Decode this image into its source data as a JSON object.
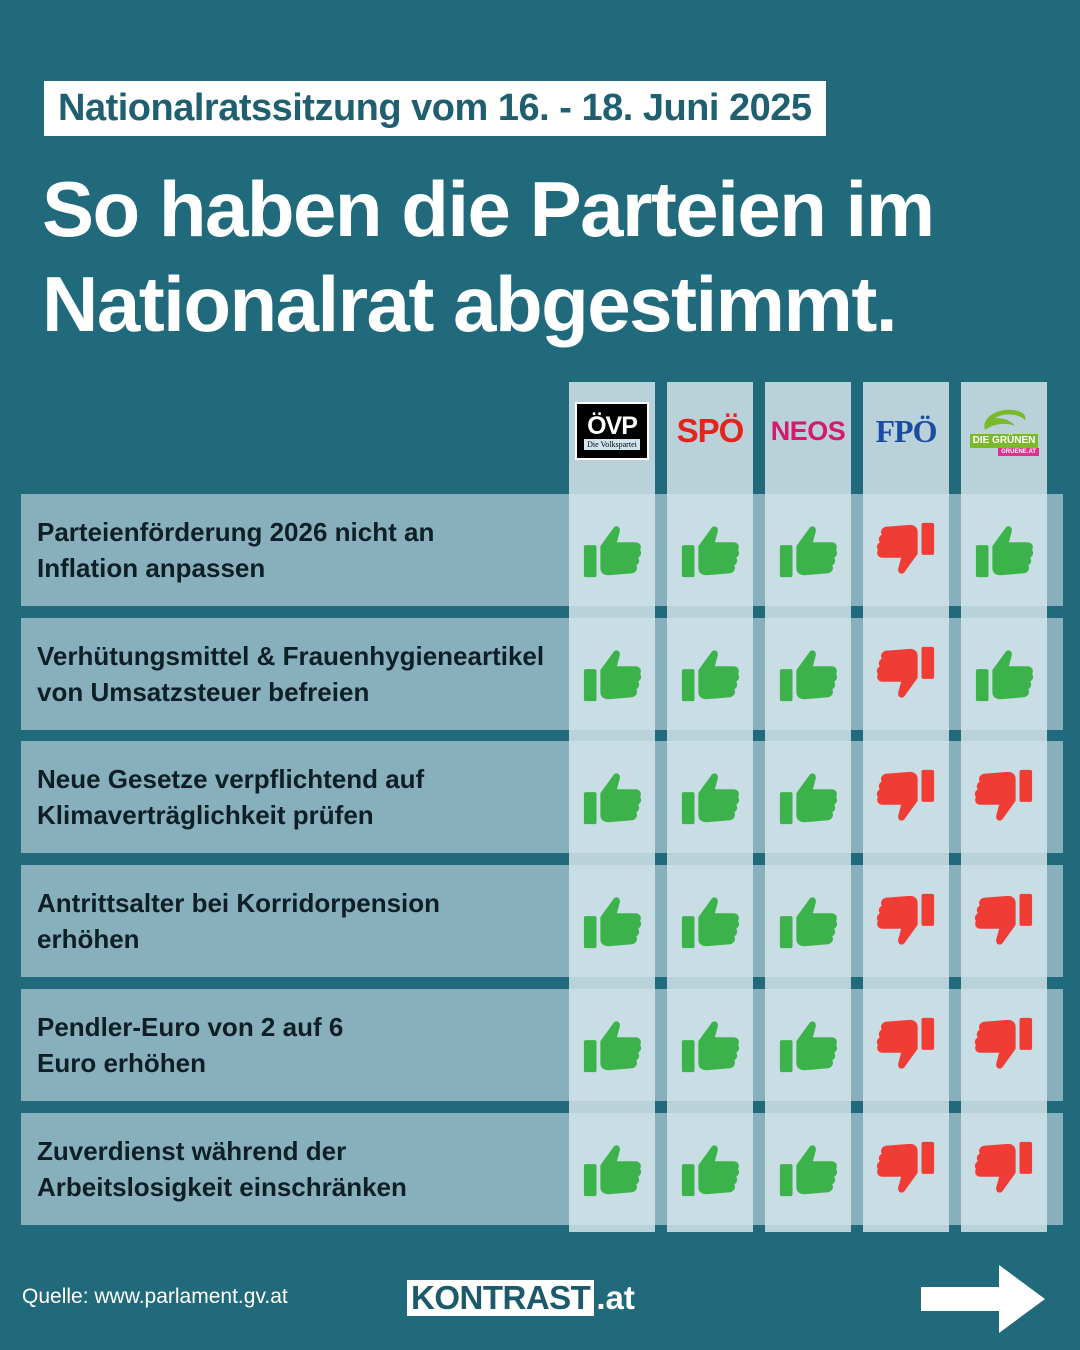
{
  "header": {
    "date_label": "Nationalratssitzung vom 16. - 18. Juni 2025",
    "title": "So haben die Parteien im Nationalrat abgestimmt."
  },
  "parties": [
    {
      "name": "ÖVP",
      "sub": "Die Volkspartei",
      "color": "#000000"
    },
    {
      "name": "SPÖ",
      "color": "#e3251e"
    },
    {
      "name": "NEOS",
      "color": "#d4196f"
    },
    {
      "name": "FPÖ",
      "color": "#1b4ca1"
    },
    {
      "name": "DIE GRÜNEN",
      "sub": "GRUENE.AT",
      "color": "#7ab929"
    }
  ],
  "colors": {
    "yes": "#3cb34a",
    "no": "#ef3d36",
    "background": "#216a7c"
  },
  "votes": [
    {
      "label": "Parteienförderung 2026 nicht an\nInflation anpassen",
      "votes": [
        "yes",
        "yes",
        "yes",
        "no",
        "yes"
      ]
    },
    {
      "label": "Verhütungsmittel & Frauenhygieneartikel\nvon Umsatzsteuer befreien",
      "votes": [
        "yes",
        "yes",
        "yes",
        "no",
        "yes"
      ]
    },
    {
      "label": "Neue Gesetze verpflichtend auf\nKlimaverträglichkeit prüfen",
      "votes": [
        "yes",
        "yes",
        "yes",
        "no",
        "no"
      ]
    },
    {
      "label": "Antrittsalter bei Korridorpension\nerhöhen",
      "votes": [
        "yes",
        "yes",
        "yes",
        "no",
        "no"
      ]
    },
    {
      "label": "Pendler-Euro von 2 auf 6\nEuro erhöhen",
      "votes": [
        "yes",
        "yes",
        "yes",
        "no",
        "no"
      ]
    },
    {
      "label": "Zuverdienst während der\nArbeitslosigkeit einschränken",
      "votes": [
        "yes",
        "yes",
        "yes",
        "no",
        "no"
      ]
    }
  ],
  "footer": {
    "source": "Quelle: www.parlament.gv.at",
    "brand": "KONTRAST",
    "brand_tld": ".at",
    "next_icon": "arrow-right-icon"
  }
}
